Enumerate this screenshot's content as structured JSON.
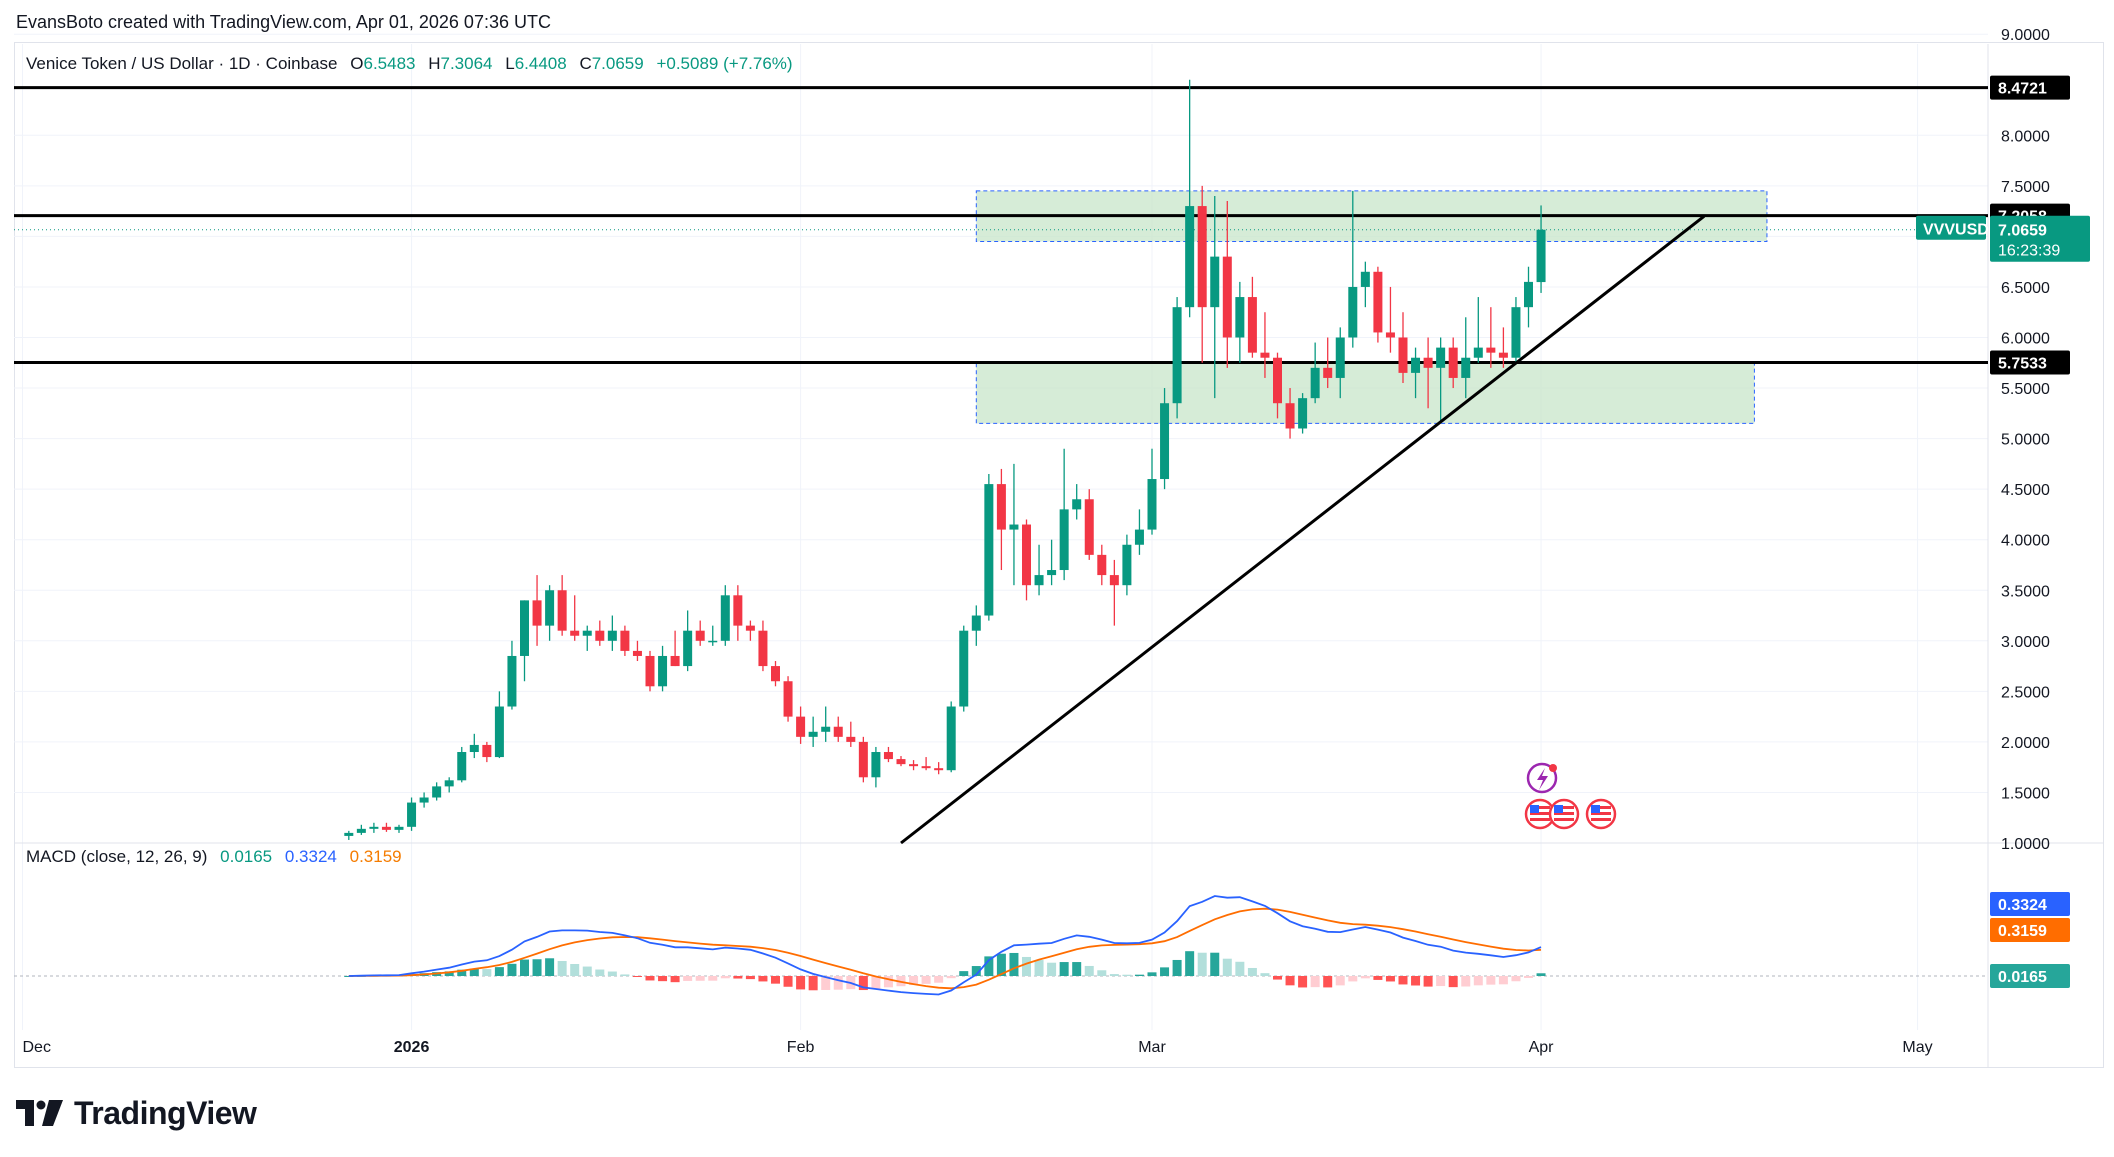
{
  "header": {
    "credit": "EvansBoto created with TradingView.com, Apr 01, 2026 07:36 UTC"
  },
  "symbol": {
    "title": "Venice Token / US Dollar · 1D · Coinbase",
    "open_label": "O",
    "open": "6.5483",
    "high_label": "H",
    "high": "7.3064",
    "low_label": "L",
    "low": "6.4408",
    "close_label": "C",
    "close": "7.0659",
    "change": "+0.5089 (+7.76%)"
  },
  "macd": {
    "title": "MACD (close, 12, 26, 9)",
    "histogram": "0.0165",
    "macd": "0.3324",
    "signal": "0.3159"
  },
  "price_axis": [
    "9.0000",
    "8.0000",
    "7.5000",
    "7.0000",
    "6.5000",
    "6.0000",
    "5.5000",
    "5.0000",
    "4.5000",
    "4.0000",
    "3.5000",
    "3.0000",
    "2.5000",
    "2.0000",
    "1.5000",
    "1.0000"
  ],
  "time_axis": [
    {
      "label": "Dec",
      "bold": false
    },
    {
      "label": "2026",
      "bold": true
    },
    {
      "label": "Feb",
      "bold": false
    },
    {
      "label": "Mar",
      "bold": false
    },
    {
      "label": "Apr",
      "bold": false
    },
    {
      "label": "May",
      "bold": false
    }
  ],
  "price_tags": {
    "line_high": "8.4721",
    "line_mid": "7.2058",
    "line_low": "5.7533",
    "ticker": "VVVUSD",
    "last_price": "7.0659",
    "countdown": "16:23:39"
  },
  "macd_tags": {
    "macd": "0.3324",
    "signal": "0.3159",
    "histogram": "0.0165"
  },
  "colors": {
    "up": "#089981",
    "down": "#f23645",
    "macd_line": "#2962ff",
    "signal_line": "#ff6d00",
    "zone_fill": "#c8e6c9",
    "zone_border": "#2962ff"
  },
  "footer": {
    "brand": "TradingView"
  },
  "chart_data": [
    {
      "type": "candlestick",
      "title": "Venice Token / US Dollar · 1D · Coinbase",
      "ylim": [
        1.0,
        9.0
      ],
      "y_scale": "linear",
      "horizontal_lines": [
        8.4721,
        7.2058,
        5.7533
      ],
      "zones": [
        {
          "from_date": "2026-02-15",
          "to_date": "2026-04-19",
          "low": 6.95,
          "high": 7.45
        },
        {
          "from_date": "2026-02-15",
          "to_date": "2026-04-18",
          "low": 5.15,
          "high": 5.75
        }
      ],
      "trendline": {
        "start": [
          "2026-02-09",
          1.0
        ],
        "end": [
          "2026-04-14",
          7.2
        ]
      },
      "x_ticks": [
        "Dec",
        "2026",
        "Feb",
        "Mar",
        "Apr",
        "May"
      ],
      "candles": [
        {
          "date": "2025-12-27",
          "o": 1.07,
          "h": 1.12,
          "l": 1.03,
          "c": 1.1
        },
        {
          "date": "2025-12-28",
          "o": 1.1,
          "h": 1.18,
          "l": 1.08,
          "c": 1.14
        },
        {
          "date": "2025-12-29",
          "o": 1.14,
          "h": 1.2,
          "l": 1.1,
          "c": 1.16
        },
        {
          "date": "2025-12-30",
          "o": 1.16,
          "h": 1.2,
          "l": 1.11,
          "c": 1.13
        },
        {
          "date": "2025-12-31",
          "o": 1.13,
          "h": 1.18,
          "l": 1.1,
          "c": 1.16
        },
        {
          "date": "2026-01-01",
          "o": 1.16,
          "h": 1.45,
          "l": 1.12,
          "c": 1.4
        },
        {
          "date": "2026-01-02",
          "o": 1.4,
          "h": 1.5,
          "l": 1.35,
          "c": 1.45
        },
        {
          "date": "2026-01-03",
          "o": 1.45,
          "h": 1.6,
          "l": 1.42,
          "c": 1.56
        },
        {
          "date": "2026-01-04",
          "o": 1.56,
          "h": 1.65,
          "l": 1.5,
          "c": 1.62
        },
        {
          "date": "2026-01-05",
          "o": 1.62,
          "h": 1.95,
          "l": 1.6,
          "c": 1.9
        },
        {
          "date": "2026-01-06",
          "o": 1.9,
          "h": 2.08,
          "l": 1.84,
          "c": 1.97
        },
        {
          "date": "2026-01-07",
          "o": 1.97,
          "h": 2.0,
          "l": 1.8,
          "c": 1.85
        },
        {
          "date": "2026-01-08",
          "o": 1.85,
          "h": 2.5,
          "l": 1.84,
          "c": 2.35
        },
        {
          "date": "2026-01-09",
          "o": 2.35,
          "h": 3.0,
          "l": 2.32,
          "c": 2.85
        },
        {
          "date": "2026-01-10",
          "o": 2.85,
          "h": 3.4,
          "l": 2.6,
          "c": 3.4
        },
        {
          "date": "2026-01-11",
          "o": 3.4,
          "h": 3.65,
          "l": 2.95,
          "c": 3.15
        },
        {
          "date": "2026-01-12",
          "o": 3.15,
          "h": 3.55,
          "l": 3.0,
          "c": 3.5
        },
        {
          "date": "2026-01-13",
          "o": 3.5,
          "h": 3.65,
          "l": 3.05,
          "c": 3.1
        },
        {
          "date": "2026-01-14",
          "o": 3.1,
          "h": 3.45,
          "l": 3.0,
          "c": 3.05
        },
        {
          "date": "2026-01-15",
          "o": 3.05,
          "h": 3.15,
          "l": 2.9,
          "c": 3.1
        },
        {
          "date": "2026-01-16",
          "o": 3.1,
          "h": 3.2,
          "l": 2.95,
          "c": 3.0
        },
        {
          "date": "2026-01-17",
          "o": 3.0,
          "h": 3.25,
          "l": 2.9,
          "c": 3.1
        },
        {
          "date": "2026-01-18",
          "o": 3.1,
          "h": 3.15,
          "l": 2.85,
          "c": 2.9
        },
        {
          "date": "2026-01-19",
          "o": 2.9,
          "h": 3.0,
          "l": 2.8,
          "c": 2.85
        },
        {
          "date": "2026-01-20",
          "o": 2.85,
          "h": 2.9,
          "l": 2.5,
          "c": 2.55
        },
        {
          "date": "2026-01-21",
          "o": 2.55,
          "h": 2.95,
          "l": 2.5,
          "c": 2.85
        },
        {
          "date": "2026-01-22",
          "o": 2.85,
          "h": 3.1,
          "l": 2.75,
          "c": 2.75
        },
        {
          "date": "2026-01-23",
          "o": 2.75,
          "h": 3.3,
          "l": 2.7,
          "c": 3.1
        },
        {
          "date": "2026-01-24",
          "o": 3.1,
          "h": 3.2,
          "l": 2.95,
          "c": 3.0
        },
        {
          "date": "2026-01-25",
          "o": 3.0,
          "h": 3.15,
          "l": 2.95,
          "c": 3.0
        },
        {
          "date": "2026-01-26",
          "o": 3.0,
          "h": 3.55,
          "l": 2.95,
          "c": 3.45
        },
        {
          "date": "2026-01-27",
          "o": 3.45,
          "h": 3.55,
          "l": 3.0,
          "c": 3.15
        },
        {
          "date": "2026-01-28",
          "o": 3.15,
          "h": 3.2,
          "l": 3.0,
          "c": 3.1
        },
        {
          "date": "2026-01-29",
          "o": 3.1,
          "h": 3.2,
          "l": 2.7,
          "c": 2.75
        },
        {
          "date": "2026-01-30",
          "o": 2.75,
          "h": 2.8,
          "l": 2.55,
          "c": 2.6
        },
        {
          "date": "2026-01-31",
          "o": 2.6,
          "h": 2.65,
          "l": 2.2,
          "c": 2.25
        },
        {
          "date": "2026-02-01",
          "o": 2.25,
          "h": 2.35,
          "l": 1.98,
          "c": 2.05
        },
        {
          "date": "2026-02-02",
          "o": 2.05,
          "h": 2.25,
          "l": 1.95,
          "c": 2.1
        },
        {
          "date": "2026-02-03",
          "o": 2.1,
          "h": 2.35,
          "l": 2.0,
          "c": 2.15
        },
        {
          "date": "2026-02-04",
          "o": 2.15,
          "h": 2.25,
          "l": 2.0,
          "c": 2.05
        },
        {
          "date": "2026-02-05",
          "o": 2.05,
          "h": 2.2,
          "l": 1.95,
          "c": 2.0
        },
        {
          "date": "2026-02-06",
          "o": 2.0,
          "h": 2.05,
          "l": 1.6,
          "c": 1.65
        },
        {
          "date": "2026-02-07",
          "o": 1.65,
          "h": 1.95,
          "l": 1.55,
          "c": 1.9
        },
        {
          "date": "2026-02-08",
          "o": 1.9,
          "h": 1.95,
          "l": 1.8,
          "c": 1.83
        },
        {
          "date": "2026-02-09",
          "o": 1.83,
          "h": 1.86,
          "l": 1.76,
          "c": 1.78
        },
        {
          "date": "2026-02-10",
          "o": 1.78,
          "h": 1.82,
          "l": 1.72,
          "c": 1.76
        },
        {
          "date": "2026-02-11",
          "o": 1.76,
          "h": 1.85,
          "l": 1.72,
          "c": 1.74
        },
        {
          "date": "2026-02-12",
          "o": 1.74,
          "h": 1.8,
          "l": 1.68,
          "c": 1.72
        },
        {
          "date": "2026-02-13",
          "o": 1.72,
          "h": 2.4,
          "l": 1.7,
          "c": 2.35
        },
        {
          "date": "2026-02-14",
          "o": 2.35,
          "h": 3.15,
          "l": 2.3,
          "c": 3.1
        },
        {
          "date": "2026-02-15",
          "o": 3.1,
          "h": 3.35,
          "l": 2.95,
          "c": 3.25
        },
        {
          "date": "2026-02-16",
          "o": 3.25,
          "h": 4.65,
          "l": 3.2,
          "c": 4.55
        },
        {
          "date": "2026-02-17",
          "o": 4.55,
          "h": 4.7,
          "l": 3.7,
          "c": 4.1
        },
        {
          "date": "2026-02-18",
          "o": 4.1,
          "h": 4.75,
          "l": 3.55,
          "c": 4.15
        },
        {
          "date": "2026-02-19",
          "o": 4.15,
          "h": 4.2,
          "l": 3.4,
          "c": 3.55
        },
        {
          "date": "2026-02-20",
          "o": 3.55,
          "h": 3.95,
          "l": 3.45,
          "c": 3.65
        },
        {
          "date": "2026-02-21",
          "o": 3.65,
          "h": 4.0,
          "l": 3.55,
          "c": 3.7
        },
        {
          "date": "2026-02-22",
          "o": 3.7,
          "h": 4.9,
          "l": 3.6,
          "c": 4.3
        },
        {
          "date": "2026-02-23",
          "o": 4.3,
          "h": 4.55,
          "l": 4.2,
          "c": 4.4
        },
        {
          "date": "2026-02-24",
          "o": 4.4,
          "h": 4.5,
          "l": 3.8,
          "c": 3.85
        },
        {
          "date": "2026-02-25",
          "o": 3.85,
          "h": 3.95,
          "l": 3.55,
          "c": 3.65
        },
        {
          "date": "2026-02-26",
          "o": 3.65,
          "h": 3.8,
          "l": 3.15,
          "c": 3.55
        },
        {
          "date": "2026-02-27",
          "o": 3.55,
          "h": 4.05,
          "l": 3.45,
          "c": 3.95
        },
        {
          "date": "2026-02-28",
          "o": 3.95,
          "h": 4.3,
          "l": 3.85,
          "c": 4.1
        },
        {
          "date": "2026-03-01",
          "o": 4.1,
          "h": 4.9,
          "l": 4.05,
          "c": 4.6
        },
        {
          "date": "2026-03-02",
          "o": 4.6,
          "h": 5.5,
          "l": 4.5,
          "c": 5.35
        },
        {
          "date": "2026-03-03",
          "o": 5.35,
          "h": 6.4,
          "l": 5.2,
          "c": 6.3
        },
        {
          "date": "2026-03-04",
          "o": 6.3,
          "h": 8.55,
          "l": 6.2,
          "c": 7.3
        },
        {
          "date": "2026-03-05",
          "o": 7.3,
          "h": 7.5,
          "l": 5.75,
          "c": 6.3
        },
        {
          "date": "2026-03-06",
          "o": 6.3,
          "h": 7.4,
          "l": 5.4,
          "c": 6.8
        },
        {
          "date": "2026-03-07",
          "o": 6.8,
          "h": 7.35,
          "l": 5.7,
          "c": 6.0
        },
        {
          "date": "2026-03-08",
          "o": 6.0,
          "h": 6.55,
          "l": 5.75,
          "c": 6.4
        },
        {
          "date": "2026-03-09",
          "o": 6.4,
          "h": 6.6,
          "l": 5.8,
          "c": 5.85
        },
        {
          "date": "2026-03-10",
          "o": 5.85,
          "h": 6.25,
          "l": 5.6,
          "c": 5.8
        },
        {
          "date": "2026-03-11",
          "o": 5.8,
          "h": 5.85,
          "l": 5.2,
          "c": 5.35
        },
        {
          "date": "2026-03-12",
          "o": 5.35,
          "h": 5.5,
          "l": 5.0,
          "c": 5.1
        },
        {
          "date": "2026-03-13",
          "o": 5.1,
          "h": 5.45,
          "l": 5.05,
          "c": 5.4
        },
        {
          "date": "2026-03-14",
          "o": 5.4,
          "h": 5.95,
          "l": 5.35,
          "c": 5.7
        },
        {
          "date": "2026-03-15",
          "o": 5.7,
          "h": 6.0,
          "l": 5.5,
          "c": 5.6
        },
        {
          "date": "2026-03-16",
          "o": 5.6,
          "h": 6.1,
          "l": 5.4,
          "c": 6.0
        },
        {
          "date": "2026-03-17",
          "o": 6.0,
          "h": 7.45,
          "l": 5.9,
          "c": 6.5
        },
        {
          "date": "2026-03-18",
          "o": 6.5,
          "h": 6.75,
          "l": 6.3,
          "c": 6.65
        },
        {
          "date": "2026-03-19",
          "o": 6.65,
          "h": 6.7,
          "l": 5.95,
          "c": 6.05
        },
        {
          "date": "2026-03-20",
          "o": 6.05,
          "h": 6.5,
          "l": 5.85,
          "c": 6.0
        },
        {
          "date": "2026-03-21",
          "o": 6.0,
          "h": 6.25,
          "l": 5.55,
          "c": 5.65
        },
        {
          "date": "2026-03-22",
          "o": 5.65,
          "h": 5.9,
          "l": 5.4,
          "c": 5.8
        },
        {
          "date": "2026-03-23",
          "o": 5.8,
          "h": 6.0,
          "l": 5.3,
          "c": 5.7
        },
        {
          "date": "2026-03-24",
          "o": 5.7,
          "h": 6.0,
          "l": 5.15,
          "c": 5.9
        },
        {
          "date": "2026-03-25",
          "o": 5.9,
          "h": 6.0,
          "l": 5.5,
          "c": 5.6
        },
        {
          "date": "2026-03-26",
          "o": 5.6,
          "h": 6.2,
          "l": 5.4,
          "c": 5.8
        },
        {
          "date": "2026-03-27",
          "o": 5.8,
          "h": 6.4,
          "l": 5.75,
          "c": 5.9
        },
        {
          "date": "2026-03-28",
          "o": 5.9,
          "h": 6.3,
          "l": 5.7,
          "c": 5.85
        },
        {
          "date": "2026-03-29",
          "o": 5.85,
          "h": 6.1,
          "l": 5.7,
          "c": 5.8
        },
        {
          "date": "2026-03-30",
          "o": 5.8,
          "h": 6.4,
          "l": 5.75,
          "c": 6.3
        },
        {
          "date": "2026-03-31",
          "o": 6.3,
          "h": 6.7,
          "l": 6.1,
          "c": 6.55
        },
        {
          "date": "2026-04-01",
          "o": 6.5483,
          "h": 7.3064,
          "l": 6.4408,
          "c": 7.0659
        }
      ]
    },
    {
      "type": "line",
      "title": "MACD (close, 12, 26, 9)",
      "series": [
        {
          "name": "MACD",
          "color": "#2962ff"
        },
        {
          "name": "Signal",
          "color": "#ff6d00"
        },
        {
          "name": "Histogram",
          "colors": [
            "#26a69a",
            "#b2dfdb",
            "#ff5252",
            "#ffcdd2"
          ]
        }
      ],
      "last_values": {
        "histogram": 0.0165,
        "macd": 0.3324,
        "signal": 0.3159
      }
    }
  ]
}
